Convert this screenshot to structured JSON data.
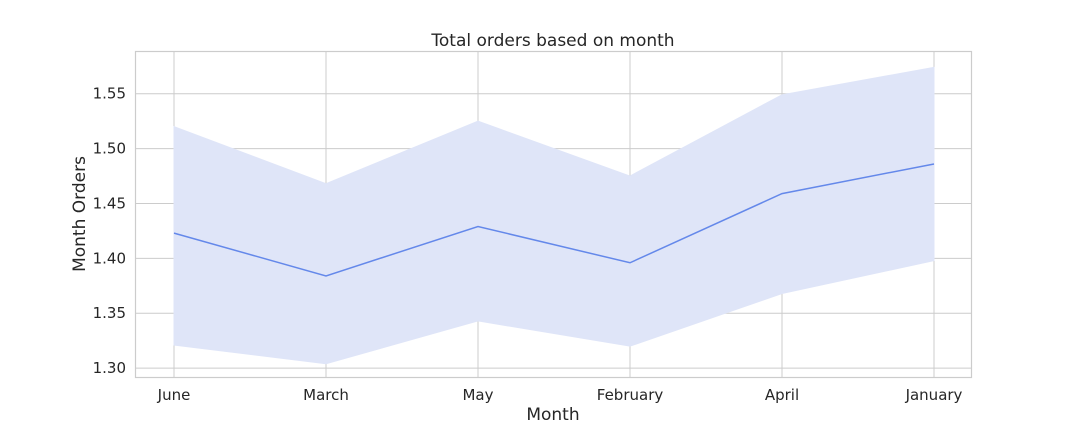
{
  "chart_data": {
    "type": "line",
    "title": "Total orders based on month",
    "xlabel": "Month",
    "ylabel": "Month Orders",
    "categories": [
      "June",
      "March",
      "May",
      "February",
      "April",
      "January"
    ],
    "series": [
      {
        "values": [
          1.423,
          1.384,
          1.429,
          1.396,
          1.459,
          1.486
        ],
        "ci_lower": [
          1.321,
          1.304,
          1.343,
          1.32,
          1.368,
          1.398
        ],
        "ci_upper": [
          1.52,
          1.468,
          1.525,
          1.475,
          1.549,
          1.574
        ],
        "color": "#6488ea",
        "band_color": "#dfe5f8"
      }
    ],
    "yticks": [
      1.3,
      1.35,
      1.4,
      1.45,
      1.5,
      1.55
    ],
    "ytick_labels": [
      "1.30",
      "1.35",
      "1.40",
      "1.45",
      "1.50",
      "1.55"
    ],
    "ylim": [
      1.291,
      1.588
    ],
    "grid": true,
    "background": "#ffffff",
    "grid_color": "#cccccc"
  }
}
